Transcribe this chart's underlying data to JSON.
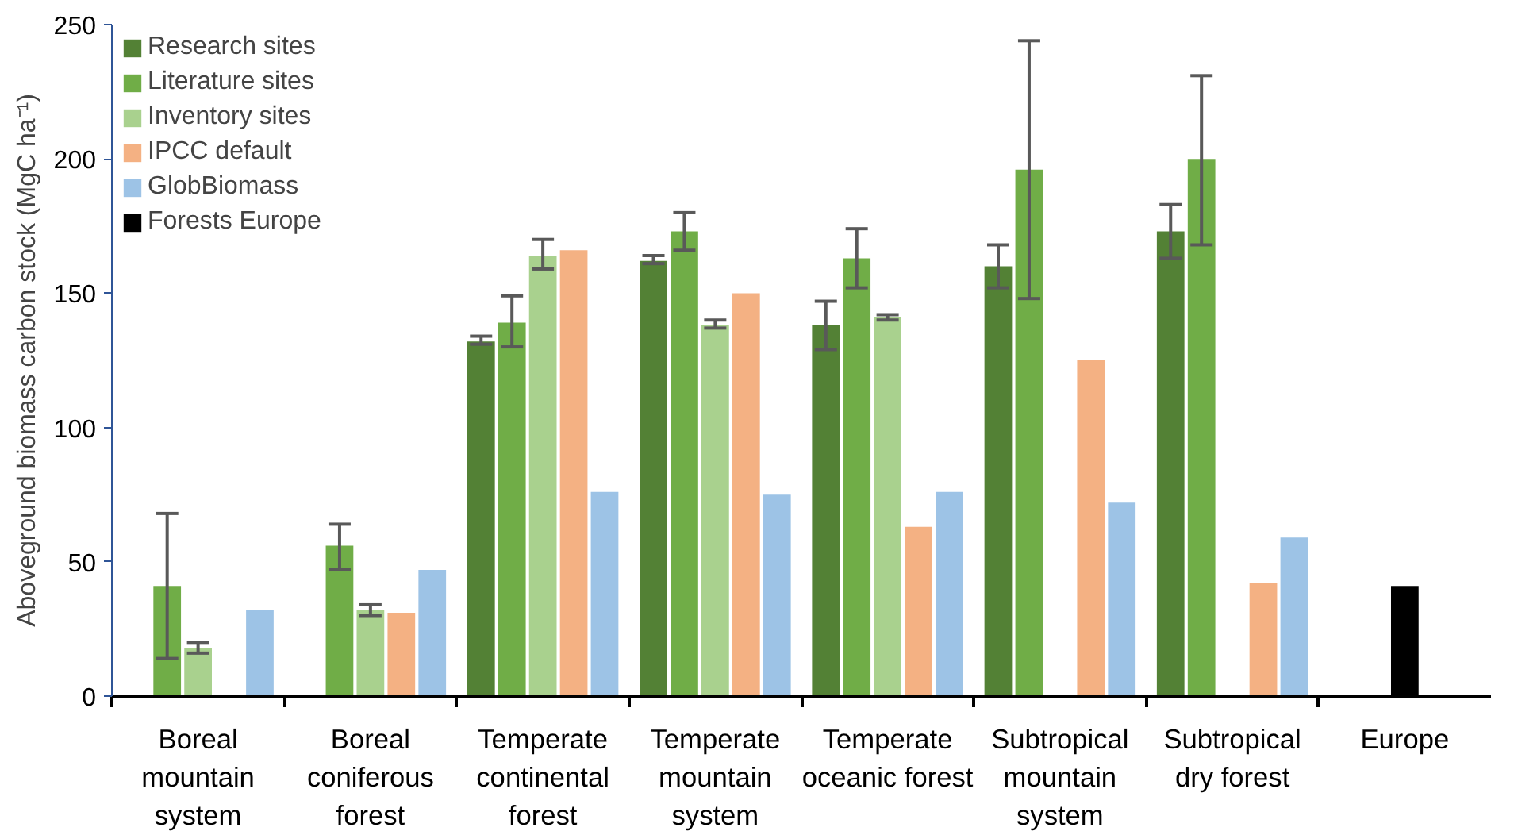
{
  "chart_data": {
    "type": "bar",
    "ylabel": "Aboveground biomass carbon stock (MgC ha⁻¹)",
    "categories": [
      "Boreal mountain system",
      "Boreal coniferous forest",
      "Temperate continental forest",
      "Temperate mountain system",
      "Temperate oceanic forest",
      "Subtropical mountain system",
      "Subtropical dry forest",
      "Europe"
    ],
    "series": [
      {
        "name": "Research sites",
        "color": "#538135",
        "values": [
          null,
          null,
          132,
          162,
          138,
          160,
          173,
          null
        ],
        "errors": [
          null,
          null,
          [
            131,
            134
          ],
          [
            161,
            164
          ],
          [
            129,
            147
          ],
          [
            152,
            168
          ],
          [
            163,
            183
          ],
          null
        ]
      },
      {
        "name": "Literature sites",
        "color": "#70ad47",
        "values": [
          41,
          56,
          139,
          173,
          163,
          196,
          200,
          null
        ],
        "errors": [
          [
            14,
            68
          ],
          [
            47,
            64
          ],
          [
            130,
            149
          ],
          [
            166,
            180
          ],
          [
            152,
            174
          ],
          [
            148,
            244
          ],
          [
            168,
            231
          ],
          null
        ]
      },
      {
        "name": "Inventory sites",
        "color": "#a9d18e",
        "values": [
          18,
          32,
          164,
          138,
          141,
          null,
          null,
          null
        ],
        "errors": [
          [
            16,
            20
          ],
          [
            30,
            34
          ],
          [
            159,
            170
          ],
          [
            137,
            140
          ],
          [
            140,
            142
          ],
          null,
          null,
          null
        ]
      },
      {
        "name": "IPCC default",
        "color": "#f4b183",
        "values": [
          null,
          31,
          166,
          150,
          63,
          125,
          42,
          null
        ]
      },
      {
        "name": "GlobBiomass",
        "color": "#9dc3e6",
        "values": [
          32,
          47,
          76,
          75,
          76,
          72,
          59,
          null
        ]
      },
      {
        "name": "Forests Europe",
        "color": "#000000",
        "values": [
          null,
          null,
          null,
          null,
          null,
          null,
          null,
          41
        ]
      }
    ],
    "ylim": [
      0,
      250
    ],
    "yticks": [
      0,
      50,
      100,
      150,
      200,
      250
    ],
    "grid": false,
    "legend": "top left"
  }
}
